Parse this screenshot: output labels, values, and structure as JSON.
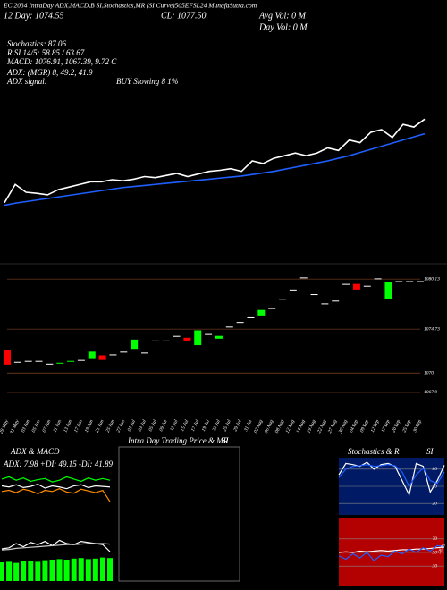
{
  "header": {
    "title": "EC 2034 IntraDay ADX,MACD,B SI,Stochastics,MR (SI Curve)505EFSL24 MunafaSutra.com",
    "day": "12 Day: 1074.55",
    "close": "CL: 1077.50",
    "avg_vol": "Avg Vol: 0  M",
    "day_vol": "Day Vol: 0  M",
    "stochastics": "Stochastics: 87.06",
    "rsi": "R SI 14/5: 58.85 / 63.67",
    "macd": "MACD: 1076.91, 1067.39, 9.72 C",
    "adx": "ADX: (MGR) 8, 49.2, 41.9",
    "adx_signal": "ADX  signal:",
    "adx_signal_value": "BUY Slowing 8 1%"
  },
  "chart_data": [
    {
      "type": "line",
      "ylim": [
        1058,
        1082
      ],
      "series": [
        {
          "color": "#ffffff",
          "values": [
            1062.0,
            1065.5,
            1064.0,
            1063.8,
            1063.5,
            1064.5,
            1065.0,
            1065.5,
            1066.0,
            1066.0,
            1066.4,
            1066.2,
            1066.5,
            1067.0,
            1066.8,
            1067.2,
            1067.6,
            1067.0,
            1067.5,
            1068.0,
            1068.2,
            1068.5,
            1068.0,
            1070.0,
            1069.5,
            1070.5,
            1071.0,
            1071.5,
            1071.0,
            1071.5,
            1072.5,
            1072.0,
            1074.0,
            1073.5,
            1075.5,
            1076.0,
            1074.5,
            1077.0,
            1076.5,
            1078.0
          ]
        },
        {
          "color": "#1f5fff",
          "values": [
            1061.5,
            1061.9,
            1062.2,
            1062.5,
            1062.8,
            1063.1,
            1063.4,
            1063.7,
            1064.0,
            1064.3,
            1064.6,
            1064.9,
            1065.1,
            1065.3,
            1065.5,
            1065.7,
            1065.9,
            1066.1,
            1066.3,
            1066.5,
            1066.7,
            1066.9,
            1067.1,
            1067.4,
            1067.7,
            1068.0,
            1068.4,
            1068.8,
            1069.2,
            1069.6,
            1070.0,
            1070.5,
            1071.0,
            1071.6,
            1072.2,
            1072.8,
            1073.4,
            1074.0,
            1074.6,
            1075.2
          ]
        }
      ]
    },
    {
      "type": "candlestick",
      "categories": [
        "29 May",
        "31 May",
        "03 Jun",
        "05 Jun",
        "07 Jun",
        "11 Jun",
        "13 Jun",
        "17 Jun",
        "19 Jun",
        "21 Jun",
        "25 Jun",
        "27 Jun",
        "01 Jul",
        "03 Jul",
        "05 Jul",
        "09 Jul",
        "11 Jul",
        "15 Jul",
        "17 Jul",
        "19 Jul",
        "23 Jul",
        "25 Jul",
        "29 Jul",
        "31 Jul",
        "02 Aug",
        "06 Aug",
        "08 Aug",
        "12 Aug",
        "14 Aug",
        "19 Aug",
        "22 Aug",
        "27 Aug",
        "30 Aug",
        "04 Sep",
        "09 Sep",
        "12 Sep",
        "17 Sep",
        "20 Sep",
        "25 Sep",
        "30 Sep"
      ],
      "open": [
        1072.5,
        1071.2,
        1071.3,
        1071.3,
        1071.0,
        1071.0,
        1071.2,
        1071.4,
        1071.5,
        1071.9,
        1072.0,
        1072.3,
        1072.6,
        1072.2,
        1073.5,
        1073.5,
        1074.0,
        1073.8,
        1073.0,
        1074.2,
        1073.7,
        1075.0,
        1075.5,
        1076.0,
        1076.2,
        1077.0,
        1078.0,
        1079.0,
        1080.3,
        1078.5,
        1077.5,
        1077.8,
        1079.6,
        1079.6,
        1079.4,
        1080.2,
        1078.0,
        1079.9,
        1079.9,
        1079.9
      ],
      "close": [
        1070.9,
        1071.2,
        1071.3,
        1071.3,
        1071.0,
        1071.1,
        1071.3,
        1071.4,
        1072.3,
        1071.4,
        1072.0,
        1072.3,
        1073.6,
        1072.2,
        1073.5,
        1073.5,
        1074.0,
        1073.5,
        1074.6,
        1074.2,
        1074.0,
        1075.0,
        1075.5,
        1076.0,
        1076.8,
        1077.0,
        1078.0,
        1079.0,
        1080.3,
        1078.5,
        1077.5,
        1077.8,
        1079.6,
        1079.0,
        1079.4,
        1080.2,
        1079.8,
        1079.9,
        1079.9,
        1079.9
      ],
      "up_color": "#00ff00",
      "down_color": "#ff0000",
      "flat_color": "#ffffff",
      "ylim": [
        1067.8,
        1081.3
      ],
      "yticks": [
        1067.9,
        1070,
        1074.73,
        1080.13
      ],
      "grid_color": "#a0522d"
    },
    {
      "type": "line",
      "title": "ADX  & MACD",
      "annotation": "ADX: 7.98  +DI: 49.15  -DI: 41.89",
      "ylim": [
        0,
        100
      ],
      "series": [
        {
          "color": "#00ff00",
          "values": [
            62,
            66,
            60,
            64,
            58,
            61,
            63,
            57,
            60,
            66,
            62,
            58,
            64,
            60,
            63,
            60
          ]
        },
        {
          "color": "#ffffff",
          "values": [
            50,
            48,
            52,
            47,
            49,
            53,
            46,
            50,
            48,
            45,
            50,
            52,
            47,
            50,
            49,
            48
          ]
        },
        {
          "color": "#ff8c00",
          "values": [
            40,
            42,
            38,
            44,
            41,
            36,
            42,
            40,
            45,
            39,
            37,
            44,
            41,
            38,
            42,
            22
          ]
        }
      ]
    },
    {
      "type": "macd",
      "ylim": [
        0,
        100
      ],
      "values": [
        35,
        36,
        34,
        37,
        38,
        36,
        39,
        40,
        41,
        40,
        42,
        43,
        41,
        42,
        44,
        43
      ],
      "color": "#00ff00",
      "series": [
        {
          "color": "#ffffff",
          "values": [
            60,
            62,
            70,
            64,
            72,
            68,
            74,
            66,
            76,
            70,
            68,
            74,
            72,
            70,
            68,
            55
          ]
        },
        {
          "color": "#cccccc",
          "values": [
            58,
            59,
            61,
            62,
            63,
            64,
            65,
            66,
            67,
            68,
            68,
            69,
            70,
            70,
            70,
            69
          ]
        }
      ]
    },
    {
      "type": "panel",
      "title": "Intra  Day Trading Price  & MR",
      "subtitle": "SI"
    },
    {
      "type": "line",
      "title": "Stochastics & R",
      "subtitle": "SI",
      "background": "#001a66",
      "ylim": [
        0,
        100
      ],
      "yticks": [
        20,
        50,
        80
      ],
      "series": [
        {
          "color": "#ffffff",
          "values": [
            70,
            90,
            88,
            85,
            92,
            80,
            88,
            90,
            85,
            60,
            35,
            90,
            85,
            40,
            60,
            87
          ]
        },
        {
          "color": "#1f5fff",
          "values": [
            65,
            80,
            85,
            86,
            88,
            85,
            86,
            88,
            86,
            75,
            50,
            70,
            82,
            60,
            55,
            75
          ]
        }
      ]
    },
    {
      "type": "line",
      "background": "#b30000",
      "ylim": [
        0,
        100
      ],
      "yticks": [
        30,
        50,
        70
      ],
      "series": [
        {
          "color": "#ffffff",
          "values": [
            50,
            51,
            50,
            52,
            51,
            52,
            53,
            52,
            53,
            54,
            54,
            55,
            55,
            56,
            57,
            58
          ]
        },
        {
          "color": "#1f5fff",
          "values": [
            45,
            40,
            48,
            42,
            50,
            38,
            46,
            44,
            52,
            48,
            55,
            50,
            57,
            52,
            60,
            58.85
          ],
          "value_labels": [
            null,
            null,
            null,
            null,
            null,
            null,
            null,
            null,
            null,
            null,
            null,
            null,
            null,
            null,
            null,
            "58.85"
          ]
        }
      ]
    }
  ]
}
